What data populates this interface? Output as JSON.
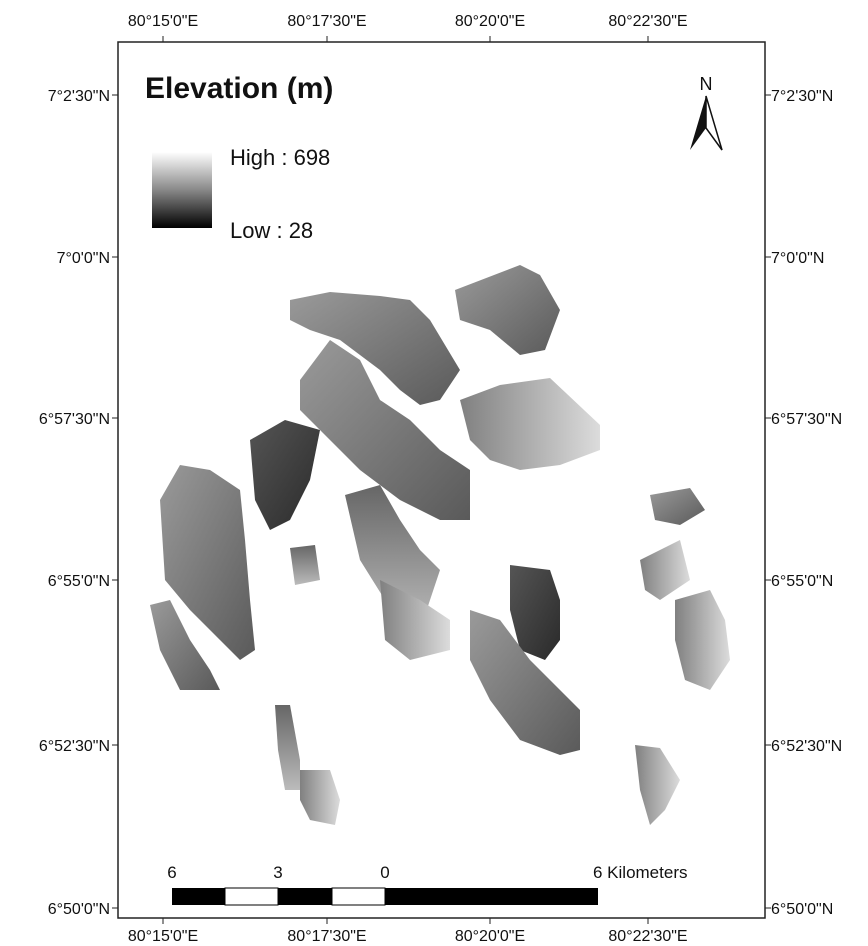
{
  "title": "Elevation (m)",
  "legend": {
    "high": "High : 698",
    "low": "Low : 28"
  },
  "north": "N",
  "graticule": {
    "top": [
      "80°15'0\"E",
      "80°17'30\"E",
      "80°20'0\"E",
      "80°22'30\"E"
    ],
    "bottom": [
      "80°15'0\"E",
      "80°17'30\"E",
      "80°20'0\"E",
      "80°22'30\"E"
    ],
    "left": [
      "7°2'30\"N",
      "7°0'0\"N",
      "6°57'30\"N",
      "6°55'0\"N",
      "6°52'30\"N",
      "6°50'0\"N"
    ],
    "right": [
      "7°2'30\"N",
      "7°0'0\"N",
      "6°57'30\"N",
      "6°55'0\"N",
      "6°52'30\"N",
      "6°50'0\"N"
    ]
  },
  "scale_bar": {
    "labels": [
      "6",
      "3",
      "0",
      "6 Kilometers"
    ]
  }
}
